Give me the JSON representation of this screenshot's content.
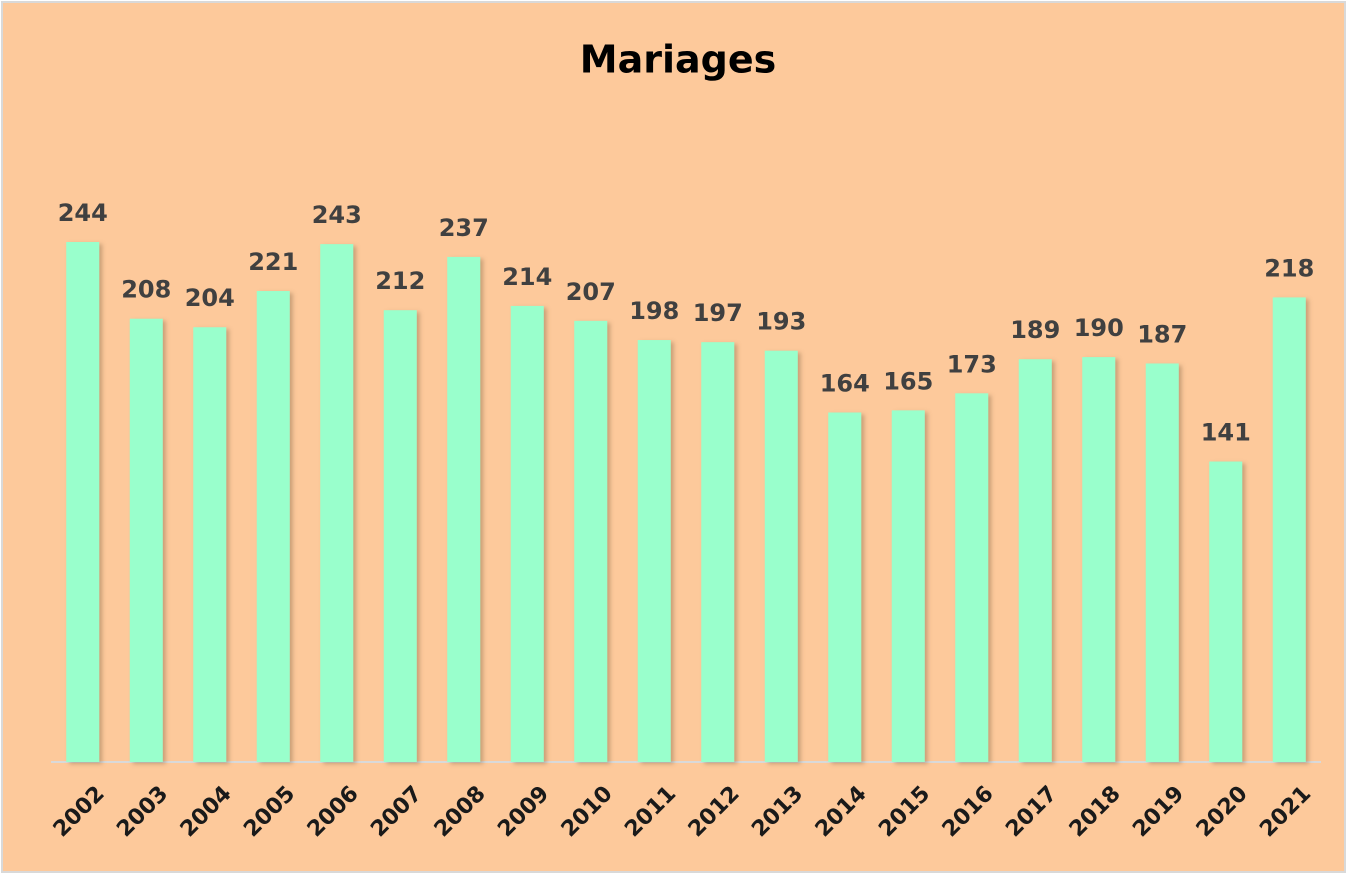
{
  "chart_data": {
    "type": "bar",
    "title": "Mariages",
    "categories": [
      "2002",
      "2003",
      "2004",
      "2005",
      "2006",
      "2007",
      "2008",
      "2009",
      "2010",
      "2011",
      "2012",
      "2013",
      "2014",
      "2015",
      "2016",
      "2017",
      "2018",
      "2019",
      "2020",
      "2021"
    ],
    "values": [
      244,
      208,
      204,
      221,
      243,
      212,
      237,
      214,
      207,
      198,
      197,
      193,
      164,
      165,
      173,
      189,
      190,
      187,
      141,
      218
    ],
    "color": "#99ffcc"
  }
}
